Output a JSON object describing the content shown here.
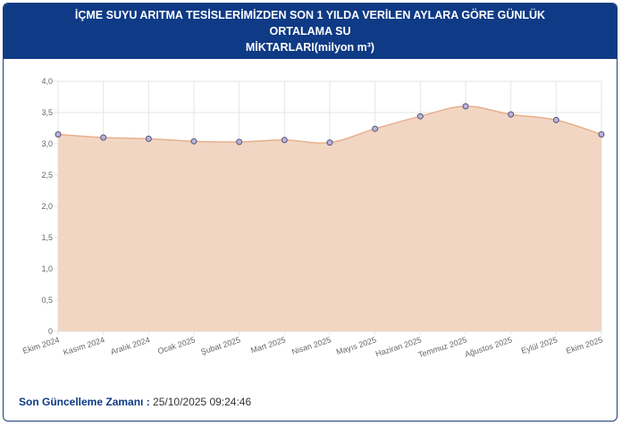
{
  "header": {
    "title_line1": "İÇME SUYU ARITMA TESİSLERİMİZDEN SON 1 YILDA VERİLEN AYLARA GÖRE GÜNLÜK ORTALAMA SU",
    "title_line2": "MİKTARLARI(milyon m³)"
  },
  "footer": {
    "label": "Son Güncelleme Zamanı :",
    "value": "25/10/2025 09:24:46"
  },
  "colors": {
    "header_bg": "#0f3a85",
    "area_fill": "#f2d6c4",
    "line": "#e8b08c",
    "point_fill": "#b9b3dd",
    "point_stroke": "#555577"
  },
  "chart_data": {
    "type": "area",
    "categories": [
      "Ekim 2024",
      "Kasım 2024",
      "Aralık 2024",
      "Ocak 2025",
      "Şubat 2025",
      "Mart 2025",
      "Nisan 2025",
      "Mayıs 2025",
      "Haziran 2025",
      "Temmuz 2025",
      "Ağustos 2025",
      "Eylül 2025",
      "Ekim 2025"
    ],
    "values": [
      3.15,
      3.1,
      3.08,
      3.04,
      3.03,
      3.06,
      3.02,
      3.24,
      3.44,
      3.6,
      3.47,
      3.38,
      3.15
    ],
    "ylim": [
      0,
      4.0
    ],
    "yticks": [
      "0",
      "0,5",
      "1,0",
      "1,5",
      "2,0",
      "2,5",
      "3,0",
      "3,5",
      "4,0"
    ],
    "ytick_values": [
      0,
      0.5,
      1.0,
      1.5,
      2.0,
      2.5,
      3.0,
      3.5,
      4.0
    ],
    "grid": true,
    "legend": "none"
  }
}
